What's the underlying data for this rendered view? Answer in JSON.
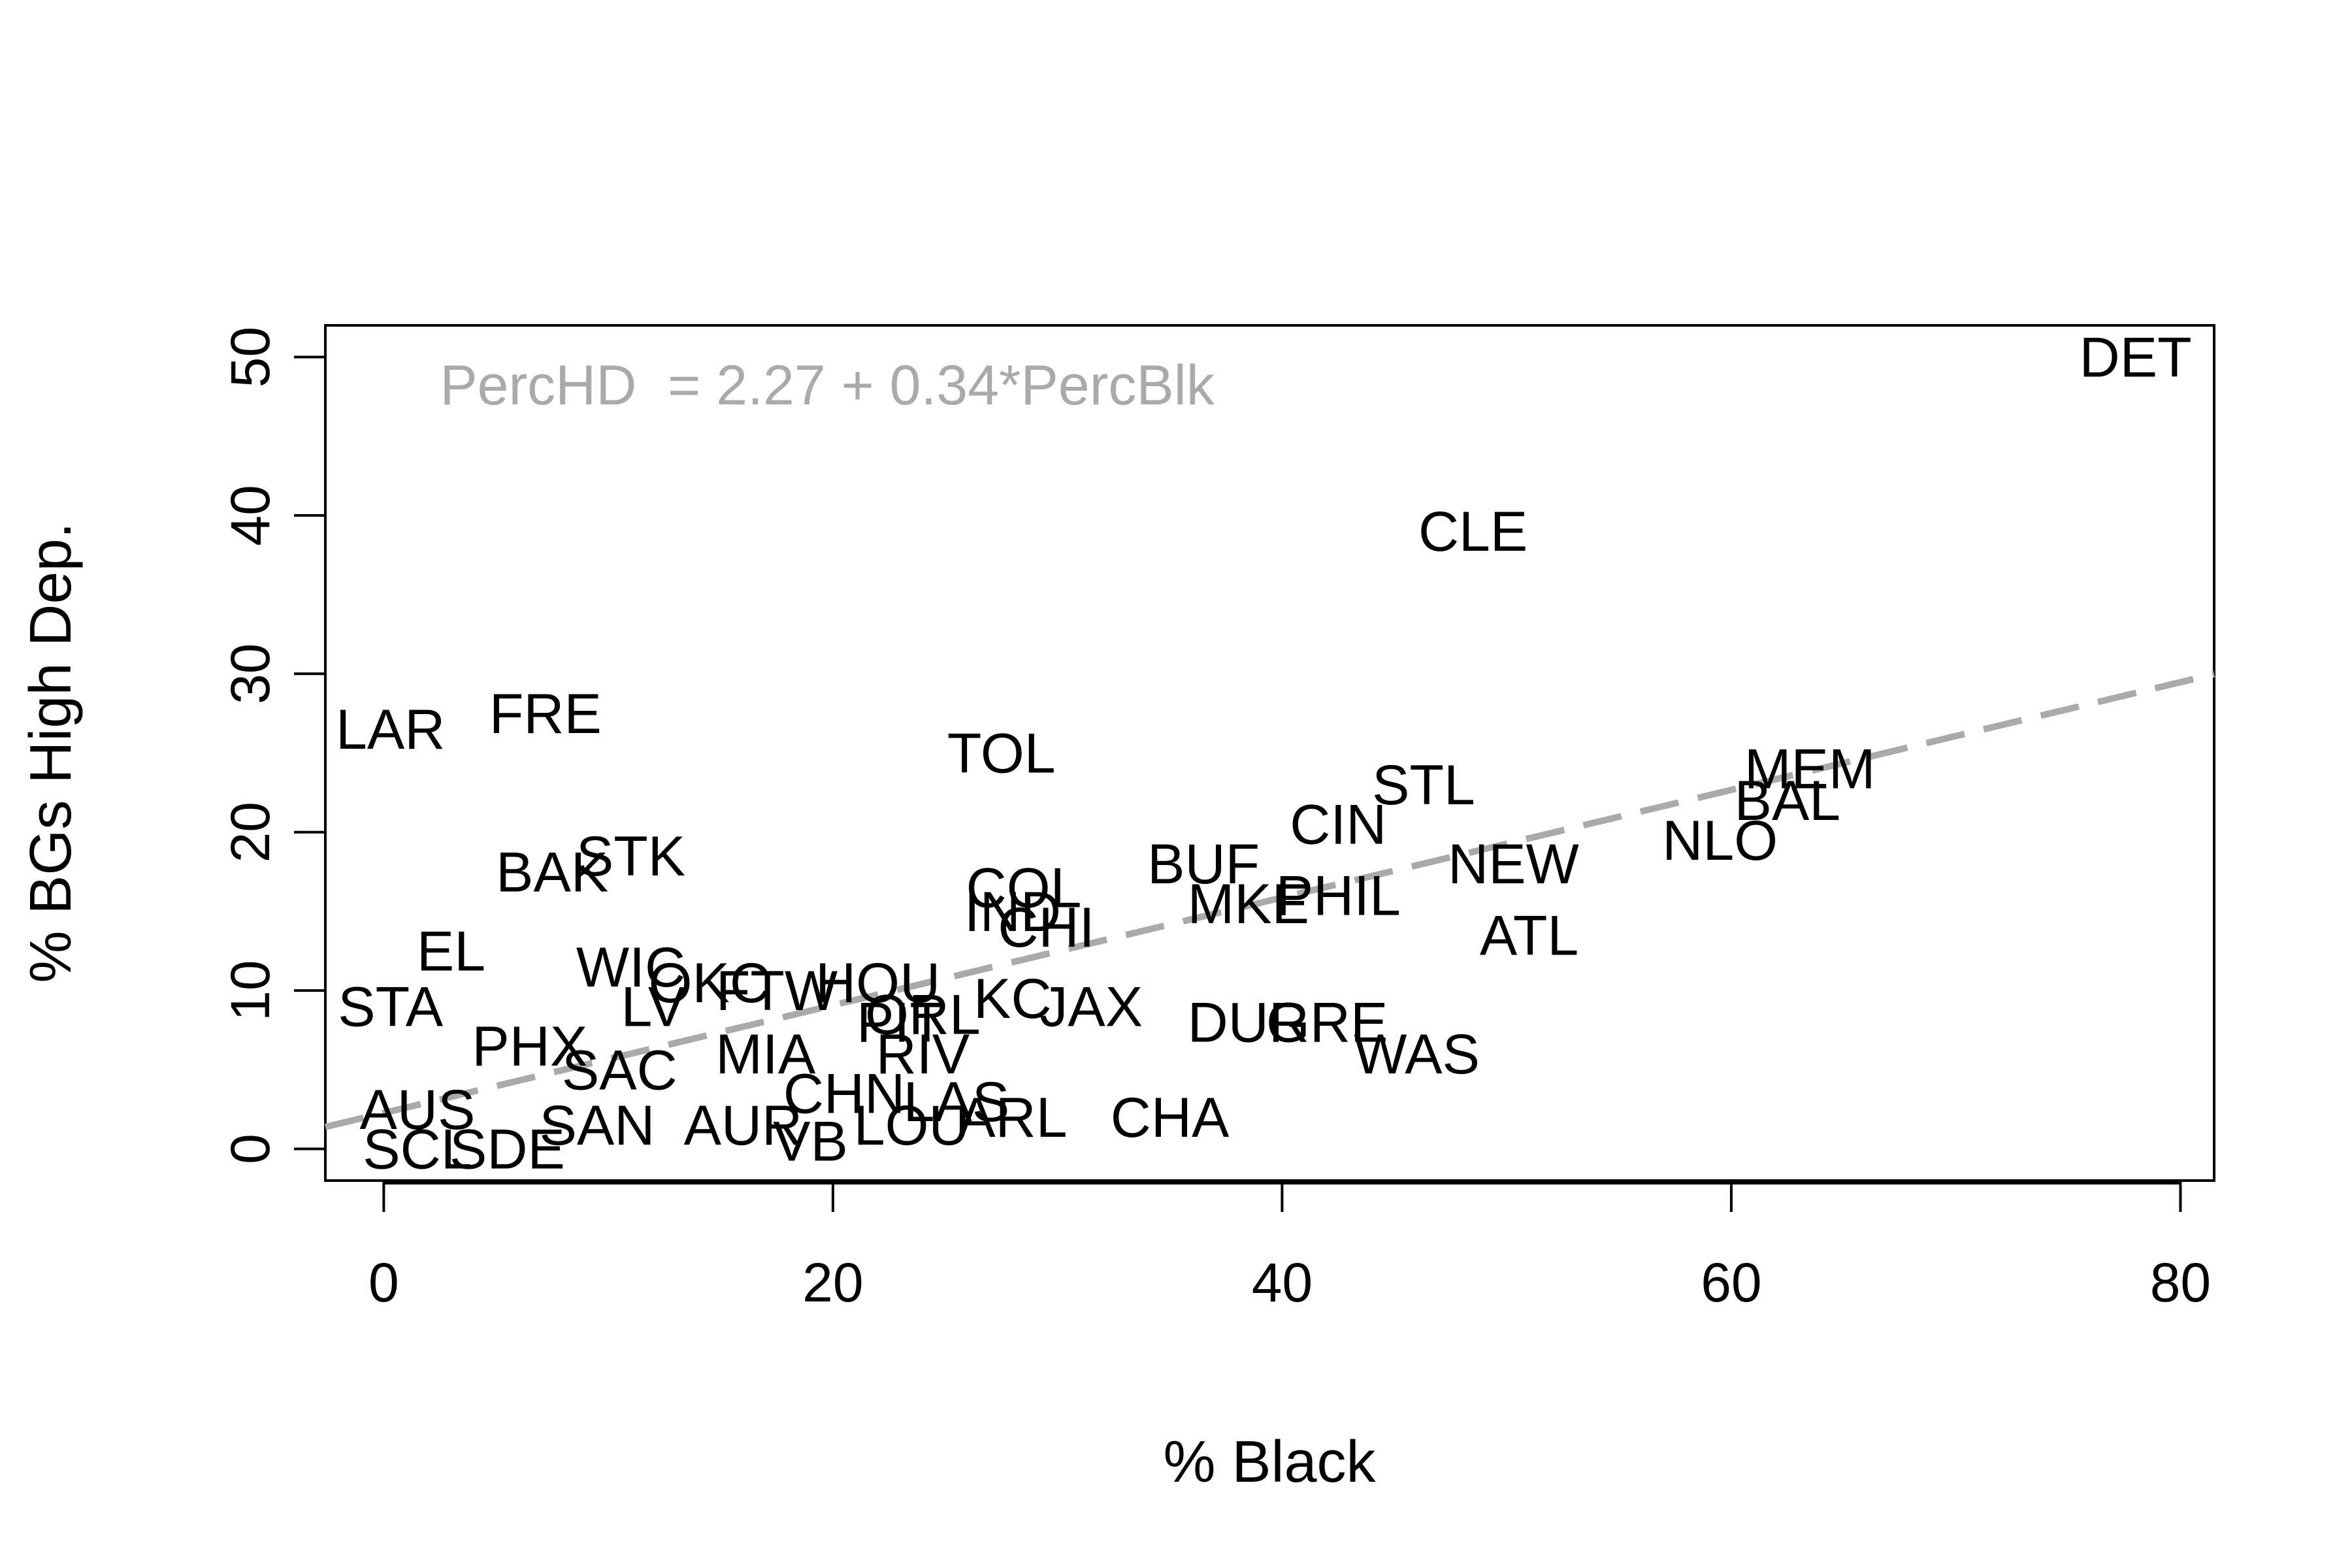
{
  "chart_data": {
    "type": "scatter",
    "title": "",
    "xlabel": "% Black",
    "ylabel": "% BGs High Dep.",
    "xlim": [
      -2.6,
      81.5
    ],
    "ylim": [
      -2.0,
      52.0
    ],
    "x_ticks": [
      0,
      20,
      40,
      60,
      80
    ],
    "y_ticks": [
      0,
      10,
      20,
      30,
      40,
      50
    ],
    "x_tick_labels": [
      "0",
      "20",
      "40",
      "60",
      "80"
    ],
    "y_tick_labels": [
      "0",
      "10",
      "20",
      "30",
      "40",
      "50"
    ],
    "grid": false,
    "point_style": "text labels",
    "points": [
      {
        "label": "DET",
        "x": 78.0,
        "y": 50.0
      },
      {
        "label": "CLE",
        "x": 48.5,
        "y": 39.0
      },
      {
        "label": "MEM",
        "x": 63.5,
        "y": 24.0
      },
      {
        "label": "BAL",
        "x": 62.5,
        "y": 22.0
      },
      {
        "label": "NLO",
        "x": 59.5,
        "y": 19.5
      },
      {
        "label": "STL",
        "x": 46.3,
        "y": 23.0
      },
      {
        "label": "CIN",
        "x": 42.5,
        "y": 20.5
      },
      {
        "label": "NEW",
        "x": 50.3,
        "y": 18.0
      },
      {
        "label": "ATL",
        "x": 51.0,
        "y": 13.5
      },
      {
        "label": "PHIL",
        "x": 42.5,
        "y": 16.0
      },
      {
        "label": "MKE",
        "x": 38.5,
        "y": 15.5
      },
      {
        "label": "BUF",
        "x": 36.5,
        "y": 18.0
      },
      {
        "label": "WAS",
        "x": 46.0,
        "y": 6.0
      },
      {
        "label": "GRE",
        "x": 42.0,
        "y": 8.0
      },
      {
        "label": "DUR",
        "x": 38.5,
        "y": 8.0
      },
      {
        "label": "CHA",
        "x": 35.0,
        "y": 2.0
      },
      {
        "label": "TOL",
        "x": 27.5,
        "y": 25.0
      },
      {
        "label": "COL",
        "x": 28.5,
        "y": 16.5
      },
      {
        "label": "IND",
        "x": 28.0,
        "y": 15.0
      },
      {
        "label": "CHI",
        "x": 29.5,
        "y": 14.0
      },
      {
        "label": "JAX",
        "x": 31.5,
        "y": 9.0
      },
      {
        "label": "KC",
        "x": 28.0,
        "y": 9.5
      },
      {
        "label": "ORL",
        "x": 24.0,
        "y": 8.5
      },
      {
        "label": "PIT",
        "x": 23.0,
        "y": 8.0
      },
      {
        "label": "HOU",
        "x": 22.0,
        "y": 10.5
      },
      {
        "label": "FTW",
        "x": 17.5,
        "y": 10.0
      },
      {
        "label": "OKC",
        "x": 14.5,
        "y": 10.5
      },
      {
        "label": "WIC",
        "x": 11.0,
        "y": 11.5
      },
      {
        "label": "LV",
        "x": 12.0,
        "y": 9.0
      },
      {
        "label": "STK",
        "x": 11.0,
        "y": 18.5
      },
      {
        "label": "BAK",
        "x": 7.5,
        "y": 17.5
      },
      {
        "label": "FRE",
        "x": 7.2,
        "y": 27.5
      },
      {
        "label": "LAR",
        "x": 0.3,
        "y": 26.5
      },
      {
        "label": "EL",
        "x": 3.0,
        "y": 12.5
      },
      {
        "label": "STA",
        "x": 0.3,
        "y": 9.0
      },
      {
        "label": "PHX",
        "x": 6.5,
        "y": 6.5
      },
      {
        "label": "MIA",
        "x": 17.0,
        "y": 6.0
      },
      {
        "label": "RIV",
        "x": 24.0,
        "y": 6.0
      },
      {
        "label": "SAC",
        "x": 10.5,
        "y": 5.0
      },
      {
        "label": "LAS",
        "x": 25.5,
        "y": 3.0
      },
      {
        "label": "CHN",
        "x": 20.5,
        "y": 3.5
      },
      {
        "label": "ARL",
        "x": 28.0,
        "y": 2.0
      },
      {
        "label": "LOU",
        "x": 23.5,
        "y": 1.5
      },
      {
        "label": "AUR",
        "x": 16.0,
        "y": 1.5
      },
      {
        "label": "VB",
        "x": 19.0,
        "y": 0.5
      },
      {
        "label": "SAN",
        "x": 9.5,
        "y": 1.5
      },
      {
        "label": "SCL",
        "x": 1.5,
        "y": 0.0
      },
      {
        "label": "SDE",
        "x": 5.5,
        "y": 0.0
      },
      {
        "label": "AUS",
        "x": 1.5,
        "y": 2.5
      }
    ],
    "series": [
      {
        "type": "regression_line",
        "intercept": 2.27,
        "slope": 0.34,
        "color": "#aaaaaa",
        "style": "dashed"
      }
    ],
    "annotations": [
      {
        "text": "PercHD  = 2.27 + 0.34*PercBlk",
        "x": 2.5,
        "y": 47.0,
        "color": "#aaaaaa"
      }
    ]
  }
}
